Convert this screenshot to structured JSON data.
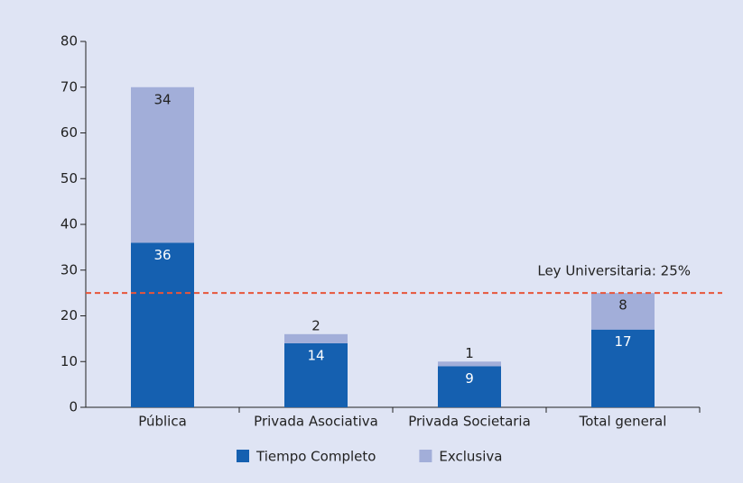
{
  "chart_data": {
    "type": "stacked_bar",
    "categories": [
      "Pública",
      "Privada Asociativa",
      "Privada Societaria",
      "Total general"
    ],
    "series": [
      {
        "name": "Tiempo Completo",
        "color": "#1560b0",
        "values": [
          36,
          14,
          9,
          17
        ]
      },
      {
        "name": "Exclusiva",
        "color": "#a2aed9",
        "values": [
          34,
          2,
          1,
          8
        ]
      }
    ],
    "ylim": [
      0,
      80
    ],
    "yticks": [
      0,
      10,
      20,
      30,
      40,
      50,
      60,
      70,
      80
    ],
    "reference_line": {
      "value": 25,
      "label": "Ley Universitaria: 25%",
      "color": "#e8553a"
    }
  }
}
